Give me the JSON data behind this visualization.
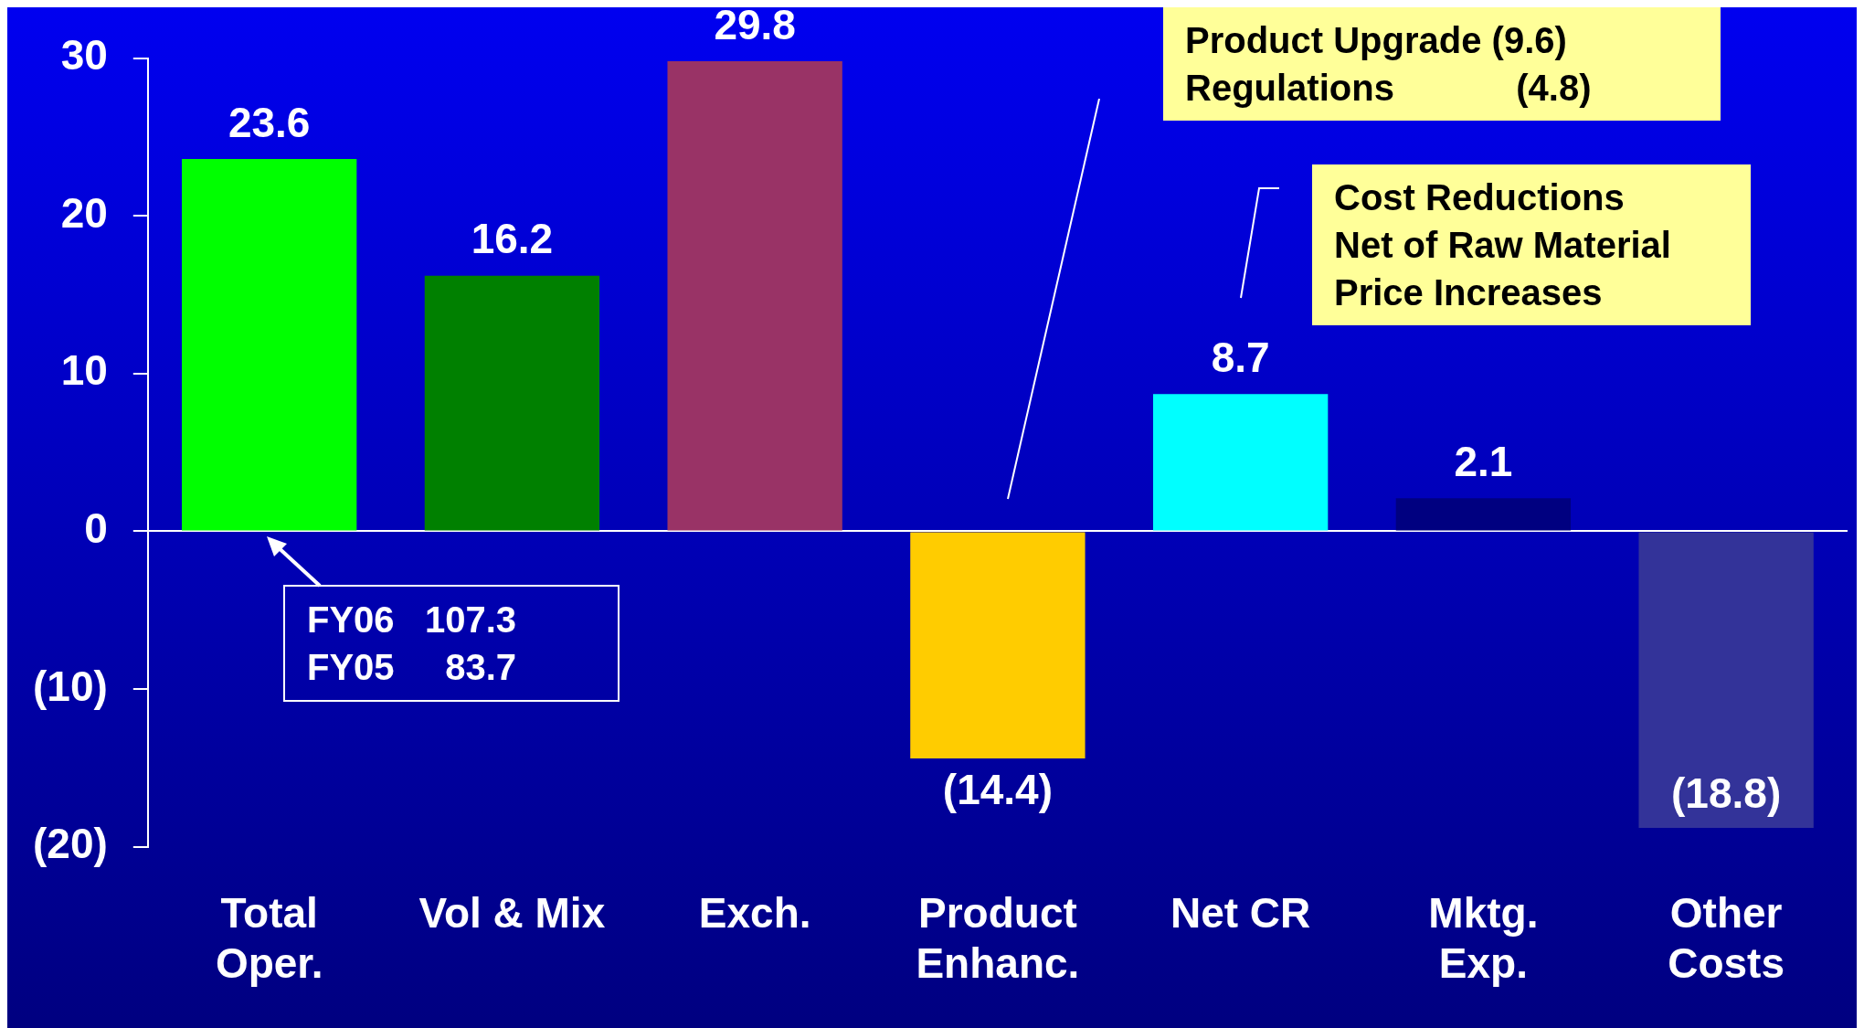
{
  "chart_data": {
    "type": "bar",
    "categories": [
      "Total\nOper.",
      "Vol & Mix",
      "Exch.",
      "Product\nEnhanc.",
      "Net CR",
      "Mktg.\nExp.",
      "Other\nCosts"
    ],
    "values": [
      23.6,
      16.2,
      29.8,
      -14.4,
      8.7,
      2.1,
      -18.8
    ],
    "colors": [
      "#00ff00",
      "#008000",
      "#993366",
      "#ffcc00",
      "#00ffff",
      "#000080",
      "#333399"
    ],
    "value_labels": [
      "23.6",
      "16.2",
      "29.8",
      "(14.4)",
      "8.7",
      "2.1",
      "(18.8)"
    ],
    "ylim": [
      -20,
      30
    ],
    "yticks": [
      {
        "value": -20,
        "label": "(20)"
      },
      {
        "value": -10,
        "label": "(10)"
      },
      0,
      10,
      20,
      30
    ],
    "annotations": [
      "FY06   107.3\nFY05     83.7",
      "Product Upgrade (9.6)\nRegulations            (4.8)",
      "Cost Reductions\nNet of Raw Material\nPrice Increases"
    ]
  }
}
